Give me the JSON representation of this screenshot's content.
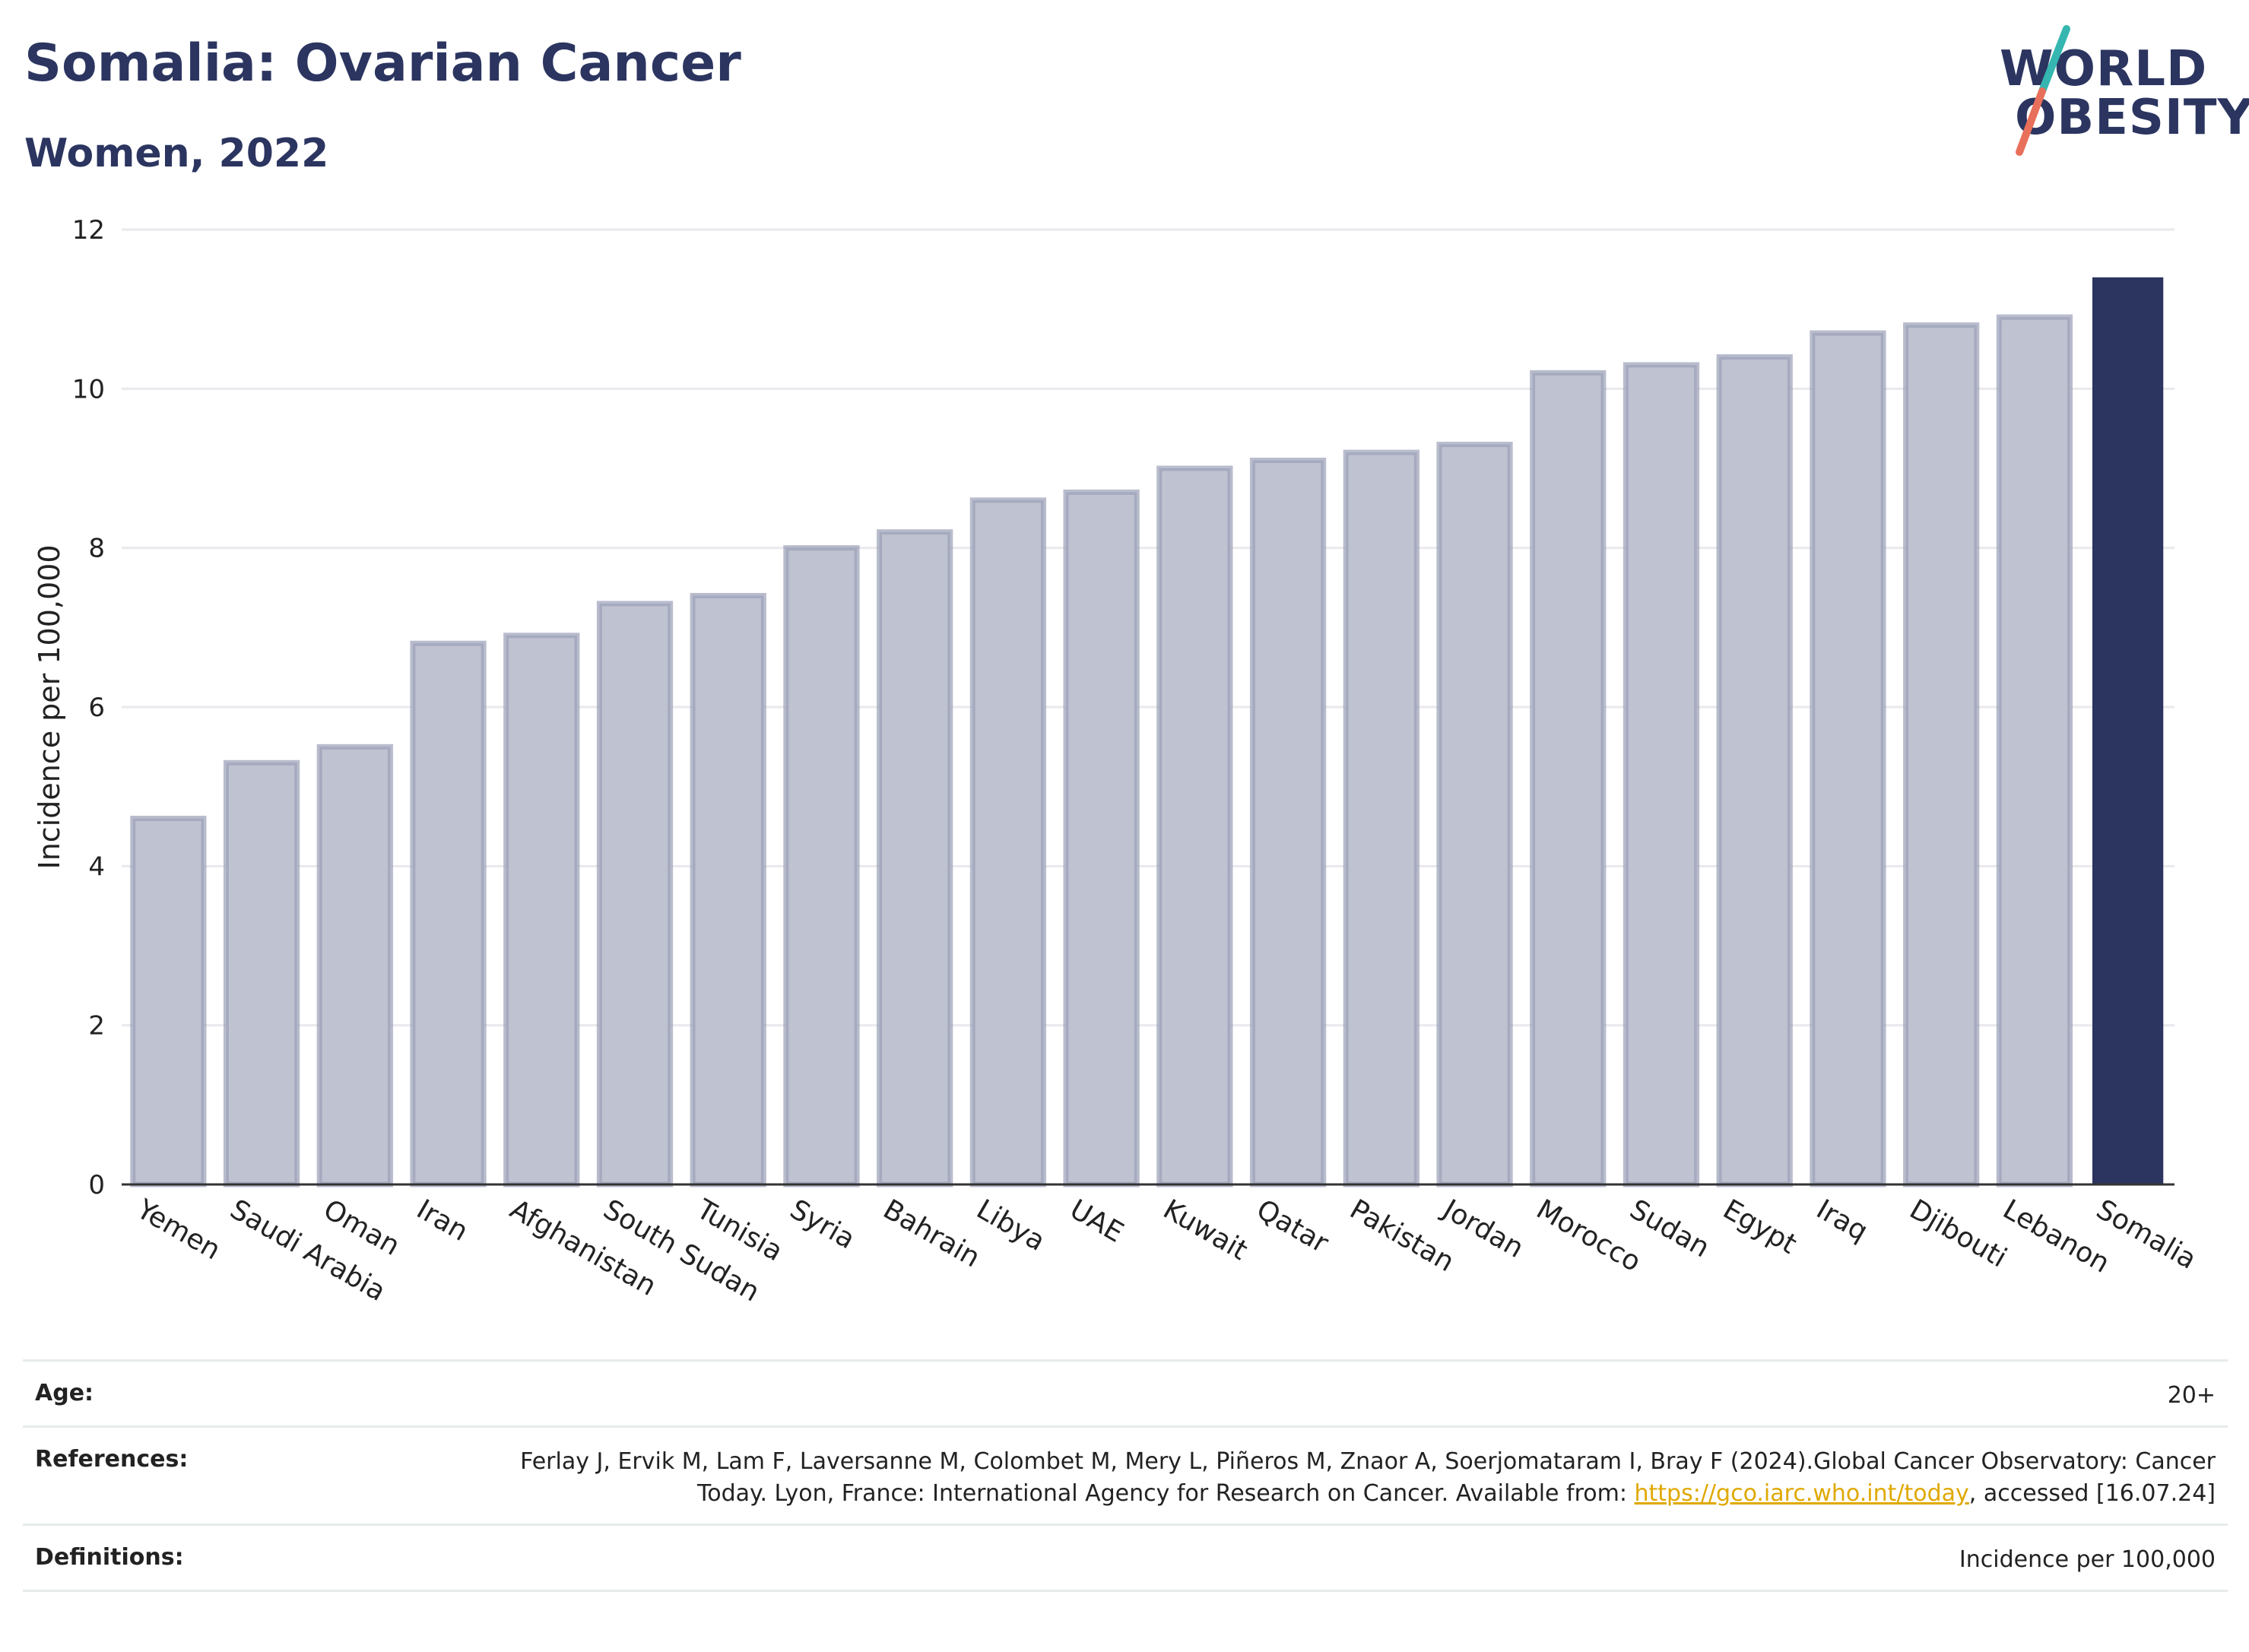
{
  "header": {
    "title": "Somalia: Ovarian Cancer",
    "subtitle": "Women, 2022"
  },
  "logo": {
    "line1": "WORLD",
    "line2": "OBESITY"
  },
  "chart_data": {
    "type": "bar",
    "ylabel": "Incidence per 100,000",
    "ylim": [
      0,
      12
    ],
    "yticks": [
      0,
      2,
      4,
      6,
      8,
      10,
      12
    ],
    "grid": true,
    "categories": [
      "Yemen",
      "Saudi Arabia",
      "Oman",
      "Iran",
      "Afghanistan",
      "South Sudan",
      "Tunisia",
      "Syria",
      "Bahrain",
      "Libya",
      "UAE",
      "Kuwait",
      "Qatar",
      "Pakistan",
      "Jordan",
      "Morocco",
      "Sudan",
      "Egypt",
      "Iraq",
      "Djibouti",
      "Lebanon",
      "Somalia"
    ],
    "values": [
      4.6,
      5.3,
      5.5,
      6.8,
      6.9,
      7.3,
      7.4,
      8.0,
      8.2,
      8.6,
      8.7,
      9.0,
      9.1,
      9.2,
      9.3,
      10.2,
      10.3,
      10.4,
      10.7,
      10.8,
      10.9,
      11.4
    ],
    "highlight": "Somalia",
    "colors": {
      "bar": "#bfc2d0",
      "bar_border": "#9a9fb8",
      "highlight": "#2b3560"
    }
  },
  "info": {
    "age_label": "Age:",
    "age_value": "20+",
    "refs_label": "References:",
    "refs_text_before": "Ferlay J, Ervik M, Lam F, Laversanne M, Colombet M, Mery L, Piñeros M, Znaor A, Soerjomataram I, Bray F (2024).Global Cancer Observatory: Cancer Today. Lyon, France: International Agency for Research on Cancer. Available from: ",
    "refs_link": "https://gco.iarc.who.int/today",
    "refs_text_after": ", accessed [16.07.24]",
    "defs_label": "Definitions:",
    "defs_value": "Incidence per 100,000"
  }
}
